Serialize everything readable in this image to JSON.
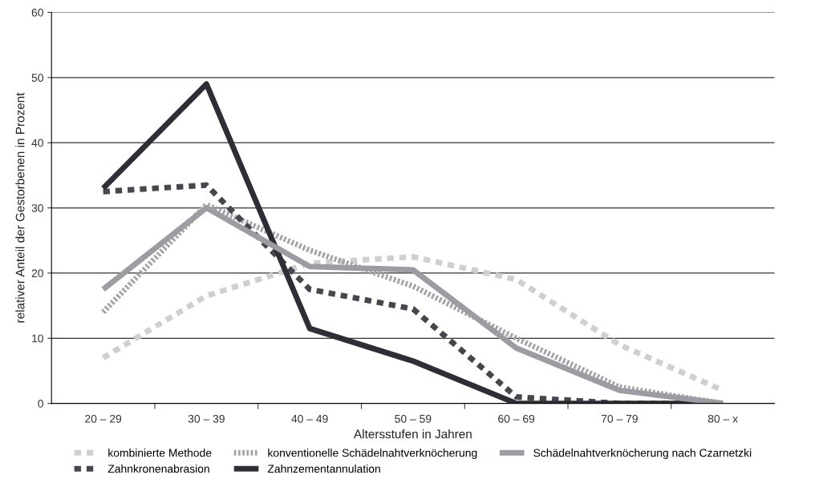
{
  "chart_data": {
    "type": "line",
    "xlabel": "Altersstufen in Jahren",
    "ylabel": "relativer Anteil der Gestorbenen in Prozent",
    "categories": [
      "20 – 29",
      "30 – 39",
      "40 – 49",
      "50 – 59",
      "60 – 69",
      "70 – 79",
      "80 – x"
    ],
    "series": [
      {
        "name": "kombinierte Methode",
        "color": "#cfcfd2",
        "line_style": "dashed",
        "values": [
          7,
          16.5,
          21.5,
          22.5,
          19,
          9,
          2
        ]
      },
      {
        "name": "konventionelle Schädelnahtverknöcherung",
        "color": "#a3a3a8",
        "line_style": "dotted",
        "values": [
          14,
          30.5,
          23.5,
          18,
          10,
          2.5,
          0
        ]
      },
      {
        "name": "Zahnkronenabrasion",
        "color": "#46464f",
        "line_style": "dashed",
        "values": [
          32.5,
          33.5,
          17.5,
          14.5,
          1,
          0,
          0
        ]
      },
      {
        "name": "Zahnzementannulation",
        "color": "#2e2e36",
        "line_style": "solid",
        "values": [
          33,
          49,
          11.5,
          6.5,
          0,
          0,
          0
        ]
      },
      {
        "name": "Schädelnahtverknöcherung nach Czarnetzki",
        "color": "#9c9ca2",
        "line_style": "solid",
        "values": [
          17.5,
          30,
          21,
          20.5,
          8.5,
          2,
          0
        ]
      }
    ],
    "ylim": [
      0,
      60
    ],
    "yticks": [
      0,
      10,
      20,
      30,
      40,
      50,
      60
    ],
    "grid": "y",
    "legend": "bottom",
    "marker": "none"
  }
}
